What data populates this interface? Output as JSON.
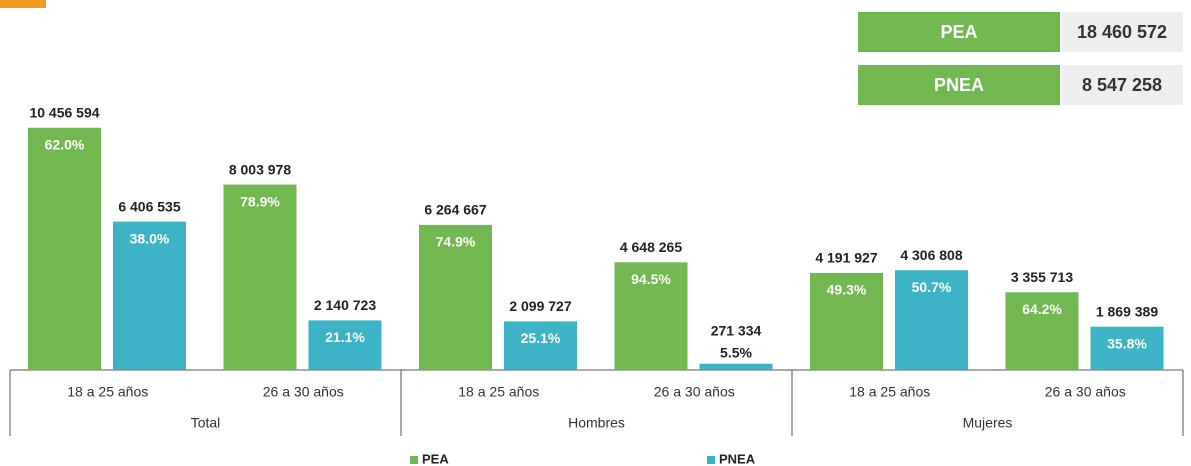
{
  "chart_data": {
    "type": "bar",
    "groups": [
      "Total",
      "Hombres",
      "Mujeres"
    ],
    "categories": [
      "18 a 25 años",
      "26 a 30 años",
      "18 a 25 años",
      "26 a 30 años",
      "18 a 25 años",
      "26 a 30 años"
    ],
    "series": [
      {
        "name": "PEA",
        "color": "#70b84f",
        "values": [
          10456594,
          8003978,
          6264667,
          4648265,
          4191927,
          3355713
        ],
        "value_labels": [
          "10 456 594",
          "8 003 978",
          "6 264 667",
          "4 648 265",
          "4 191 927",
          "3 355 713"
        ],
        "share_labels": [
          "62.0%",
          "78.9%",
          "74.9%",
          "94.5%",
          "49.3%",
          "64.2%"
        ]
      },
      {
        "name": "PNEA",
        "color": "#3cb4c6",
        "values": [
          6406535,
          2140723,
          2099727,
          271334,
          4306808,
          1869389
        ],
        "value_labels": [
          "6 406 535",
          "2 140 723",
          "2 099 727",
          "271 334",
          "4 306 808",
          "1 869 389"
        ],
        "share_labels": [
          "38.0%",
          "21.1%",
          "25.1%",
          "5.5%",
          "50.7%",
          "35.8%"
        ]
      }
    ],
    "ylim": [
      0,
      12000000
    ]
  },
  "summary": [
    {
      "label": "PEA",
      "value": "18 460 572"
    },
    {
      "label": "PNEA",
      "value": "8 547 258"
    }
  ]
}
